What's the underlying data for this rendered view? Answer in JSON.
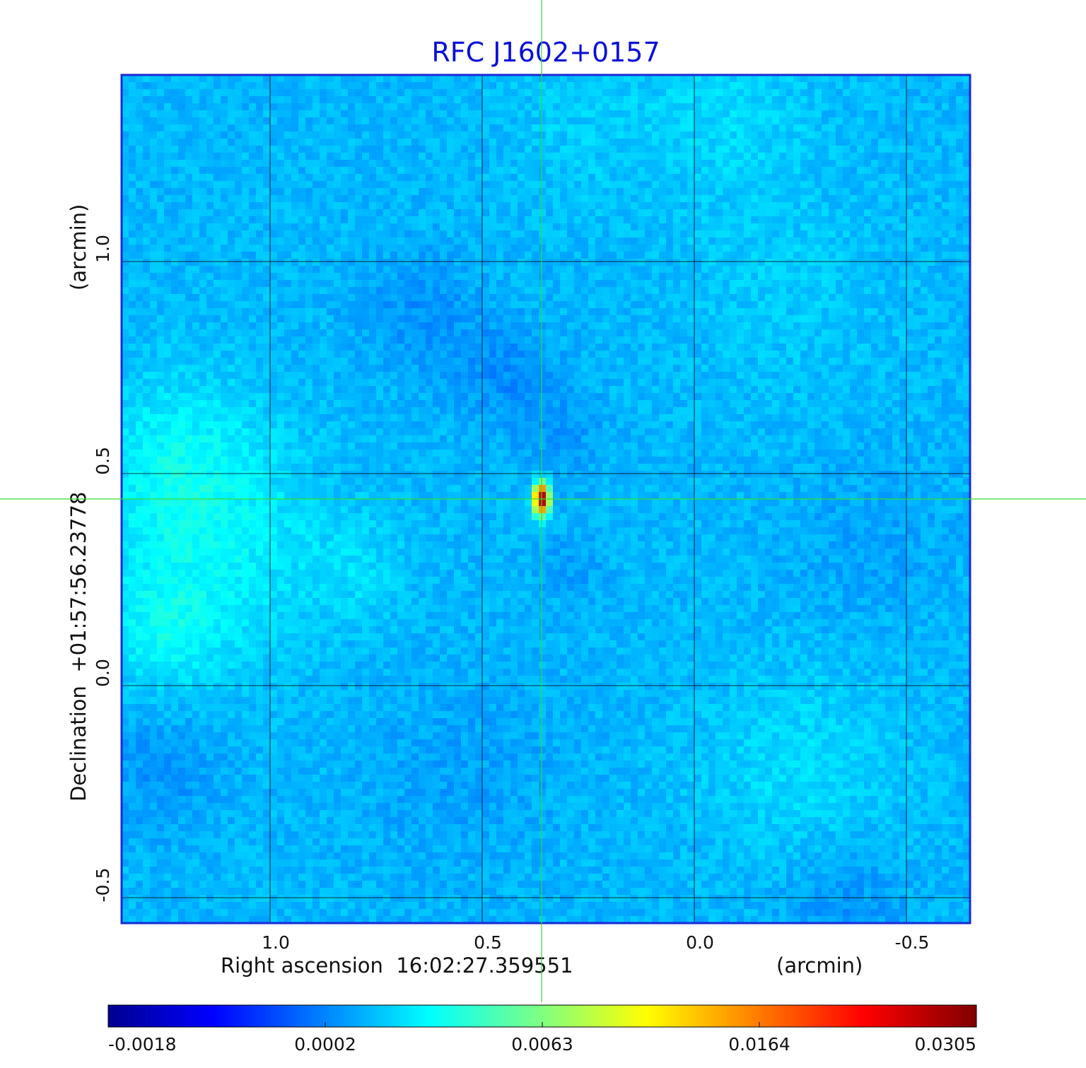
{
  "chart_data": {
    "type": "heatmap",
    "title": "RFC J1602+0157",
    "xlabel": "Right ascension  16:02:27.359551",
    "xunit": "(arcmin)",
    "ylabel": "Declination  +01:57:56.23778",
    "yunit": "(arcmin)",
    "xlim": [
      1.35,
      -0.65
    ],
    "ylim": [
      -0.56,
      1.44
    ],
    "x_ticks": [
      "1.0",
      "0.5",
      "0.0",
      "-0.5"
    ],
    "x_tick_values": [
      1.0,
      0.5,
      0.0,
      -0.5
    ],
    "y_ticks": [
      "1.0",
      "0.5",
      "0.0",
      "-0.5"
    ],
    "y_tick_values": [
      1.0,
      0.5,
      0.0,
      -0.5
    ],
    "grid": true,
    "crosshair": {
      "x": 0.36,
      "y": 0.44
    },
    "colormap": "jet",
    "colorbar_ticks": [
      "-0.0018",
      "0.0002",
      "0.0063",
      "0.0164",
      "0.0305"
    ],
    "peak": {
      "x": 0.36,
      "y": 0.44,
      "value": 0.0305
    },
    "background_level": 0.0002
  },
  "colors": {
    "title": "#0a10d8",
    "frame": "#1a2bd6",
    "grid": "#000000",
    "crosshair": "#33dd33"
  }
}
